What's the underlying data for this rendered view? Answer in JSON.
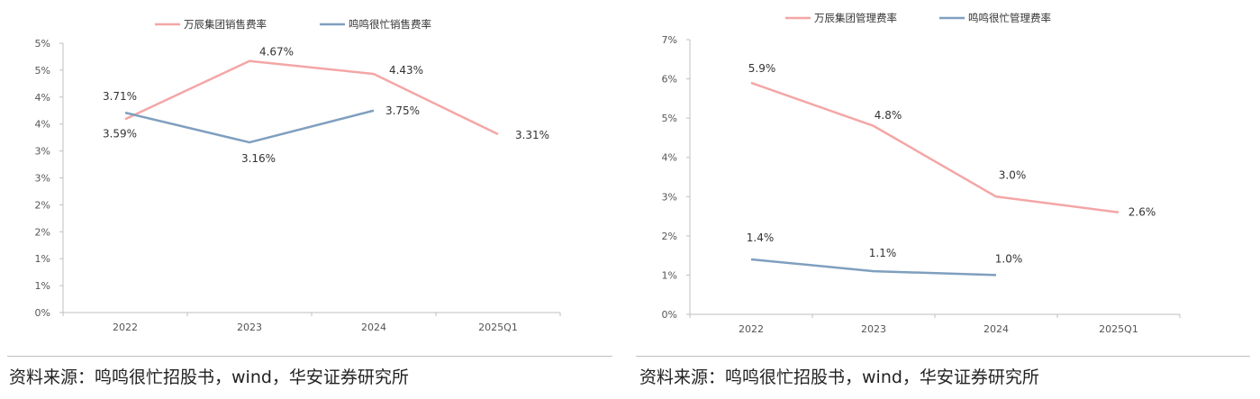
{
  "colors": {
    "wanchen": "#f4a6a6",
    "mingming": "#7f9fbf",
    "axis": "#bfbfbf"
  },
  "charts": [
    {
      "id": "selling",
      "chart_data": {
        "type": "line",
        "categories": [
          "2022",
          "2023",
          "2024",
          "2025Q1"
        ],
        "y_tick_labels": [
          "0%",
          "1%",
          "1%",
          "2%",
          "2%",
          "3%",
          "3%",
          "4%",
          "4%",
          "5%",
          "5%"
        ],
        "ylim": [
          0,
          5
        ],
        "series": [
          {
            "name": "万辰集团销售费率",
            "color_key": "wanchen",
            "values": [
              3.59,
              4.67,
              4.43,
              3.31
            ],
            "labels": [
              "3.59%",
              "4.67%",
              "4.43%",
              "3.31%"
            ]
          },
          {
            "name": "鸣鸣很忙销售费率",
            "color_key": "mingming",
            "values": [
              3.71,
              3.16,
              3.75,
              null
            ],
            "labels": [
              "3.71%",
              "3.16%",
              "3.75%",
              ""
            ]
          }
        ],
        "legend_position": "top",
        "grid": false
      },
      "source": "资料来源：鸣鸣很忙招股书，wind，华安证券研究所"
    },
    {
      "id": "admin",
      "chart_data": {
        "type": "line",
        "categories": [
          "2022",
          "2023",
          "2024",
          "2025Q1"
        ],
        "y_tick_labels": [
          "0%",
          "1%",
          "2%",
          "3%",
          "4%",
          "5%",
          "6%",
          "7%"
        ],
        "ylim": [
          0,
          7
        ],
        "series": [
          {
            "name": "万辰集团管理费率",
            "color_key": "wanchen",
            "values": [
              5.9,
              4.8,
              3.0,
              2.6
            ],
            "labels": [
              "5.9%",
              "4.8%",
              "3.0%",
              "2.6%"
            ]
          },
          {
            "name": "鸣鸣很忙管理费率",
            "color_key": "mingming",
            "values": [
              1.4,
              1.1,
              1.0,
              null
            ],
            "labels": [
              "1.4%",
              "1.1%",
              "1.0%",
              ""
            ]
          }
        ],
        "legend_position": "top",
        "grid": false
      },
      "source": "资料来源：鸣鸣很忙招股书，wind，华安证券研究所"
    }
  ]
}
